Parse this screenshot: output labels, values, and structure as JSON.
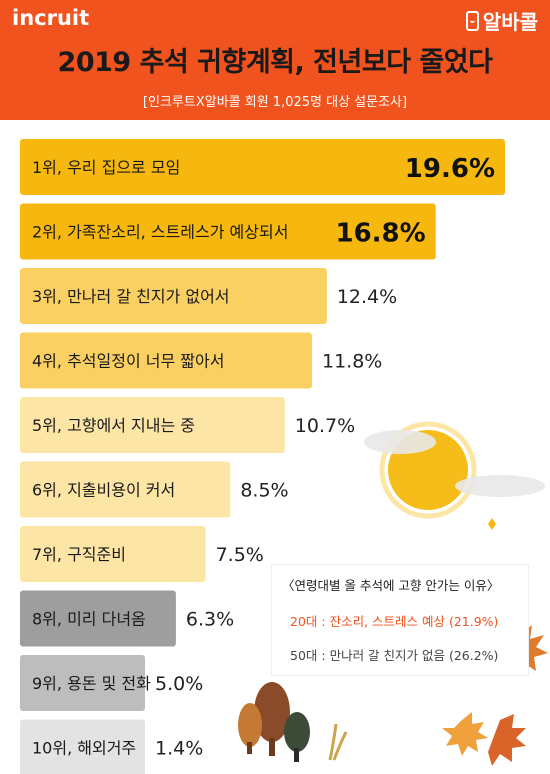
{
  "header": {
    "logo_left": "ⅰncruit",
    "logo_right": "알바콜",
    "title": "2019 추석 귀향계획, 전년보다 줄었다",
    "subtitle": "[인크루트X알바콜 회원 1,025명 대상 설문조사]"
  },
  "colors": {
    "header_bg": "#f0531e",
    "bar_top": "#f6b80e",
    "bar_mid": "#fbd063",
    "bar_light": "#fde5a6",
    "bar_gray_dark": "#9e9e9e",
    "bar_gray_mid": "#bdbdbd",
    "bar_gray_light": "#e3e3e3",
    "accent_orange": "#f0531e"
  },
  "chart_data": {
    "type": "bar",
    "orientation": "horizontal",
    "title": "2019 추석 귀향계획, 전년보다 줄었다",
    "xlabel": "",
    "ylabel": "",
    "unit": "%",
    "categories": [
      "1위, 우리 집으로 모임",
      "2위, 가족잔소리, 스트레스가 예상되서",
      "3위, 만나러 갈 친지가 없어서",
      "4위, 추석일정이 너무 짧아서",
      "5위, 고향에서 지내는 중",
      "6위, 지출비용이 커서",
      "7위, 구직준비",
      "8위, 미리 다녀옴",
      "9위, 용돈 및 전화",
      "10위, 해외거주"
    ],
    "values": [
      19.6,
      16.8,
      12.4,
      11.8,
      10.7,
      8.5,
      7.5,
      6.3,
      5.0,
      1.4
    ],
    "value_labels": [
      "19.6%",
      "16.8%",
      "12.4%",
      "11.8%",
      "10.7%",
      "8.5%",
      "7.5%",
      "6.3%",
      "5.0%",
      "1.4%"
    ],
    "xlim": [
      0,
      19.6
    ],
    "grid": false,
    "legend": "none"
  },
  "legend": {
    "title": "〈연령대별 올 추석에 고향 안가는 이유〉",
    "line1": "20대 : 잔소리, 스트레스 예상 (21.9%)",
    "line2": "50대 : 만나러 갈 친지가 없음 (26.2%)"
  }
}
